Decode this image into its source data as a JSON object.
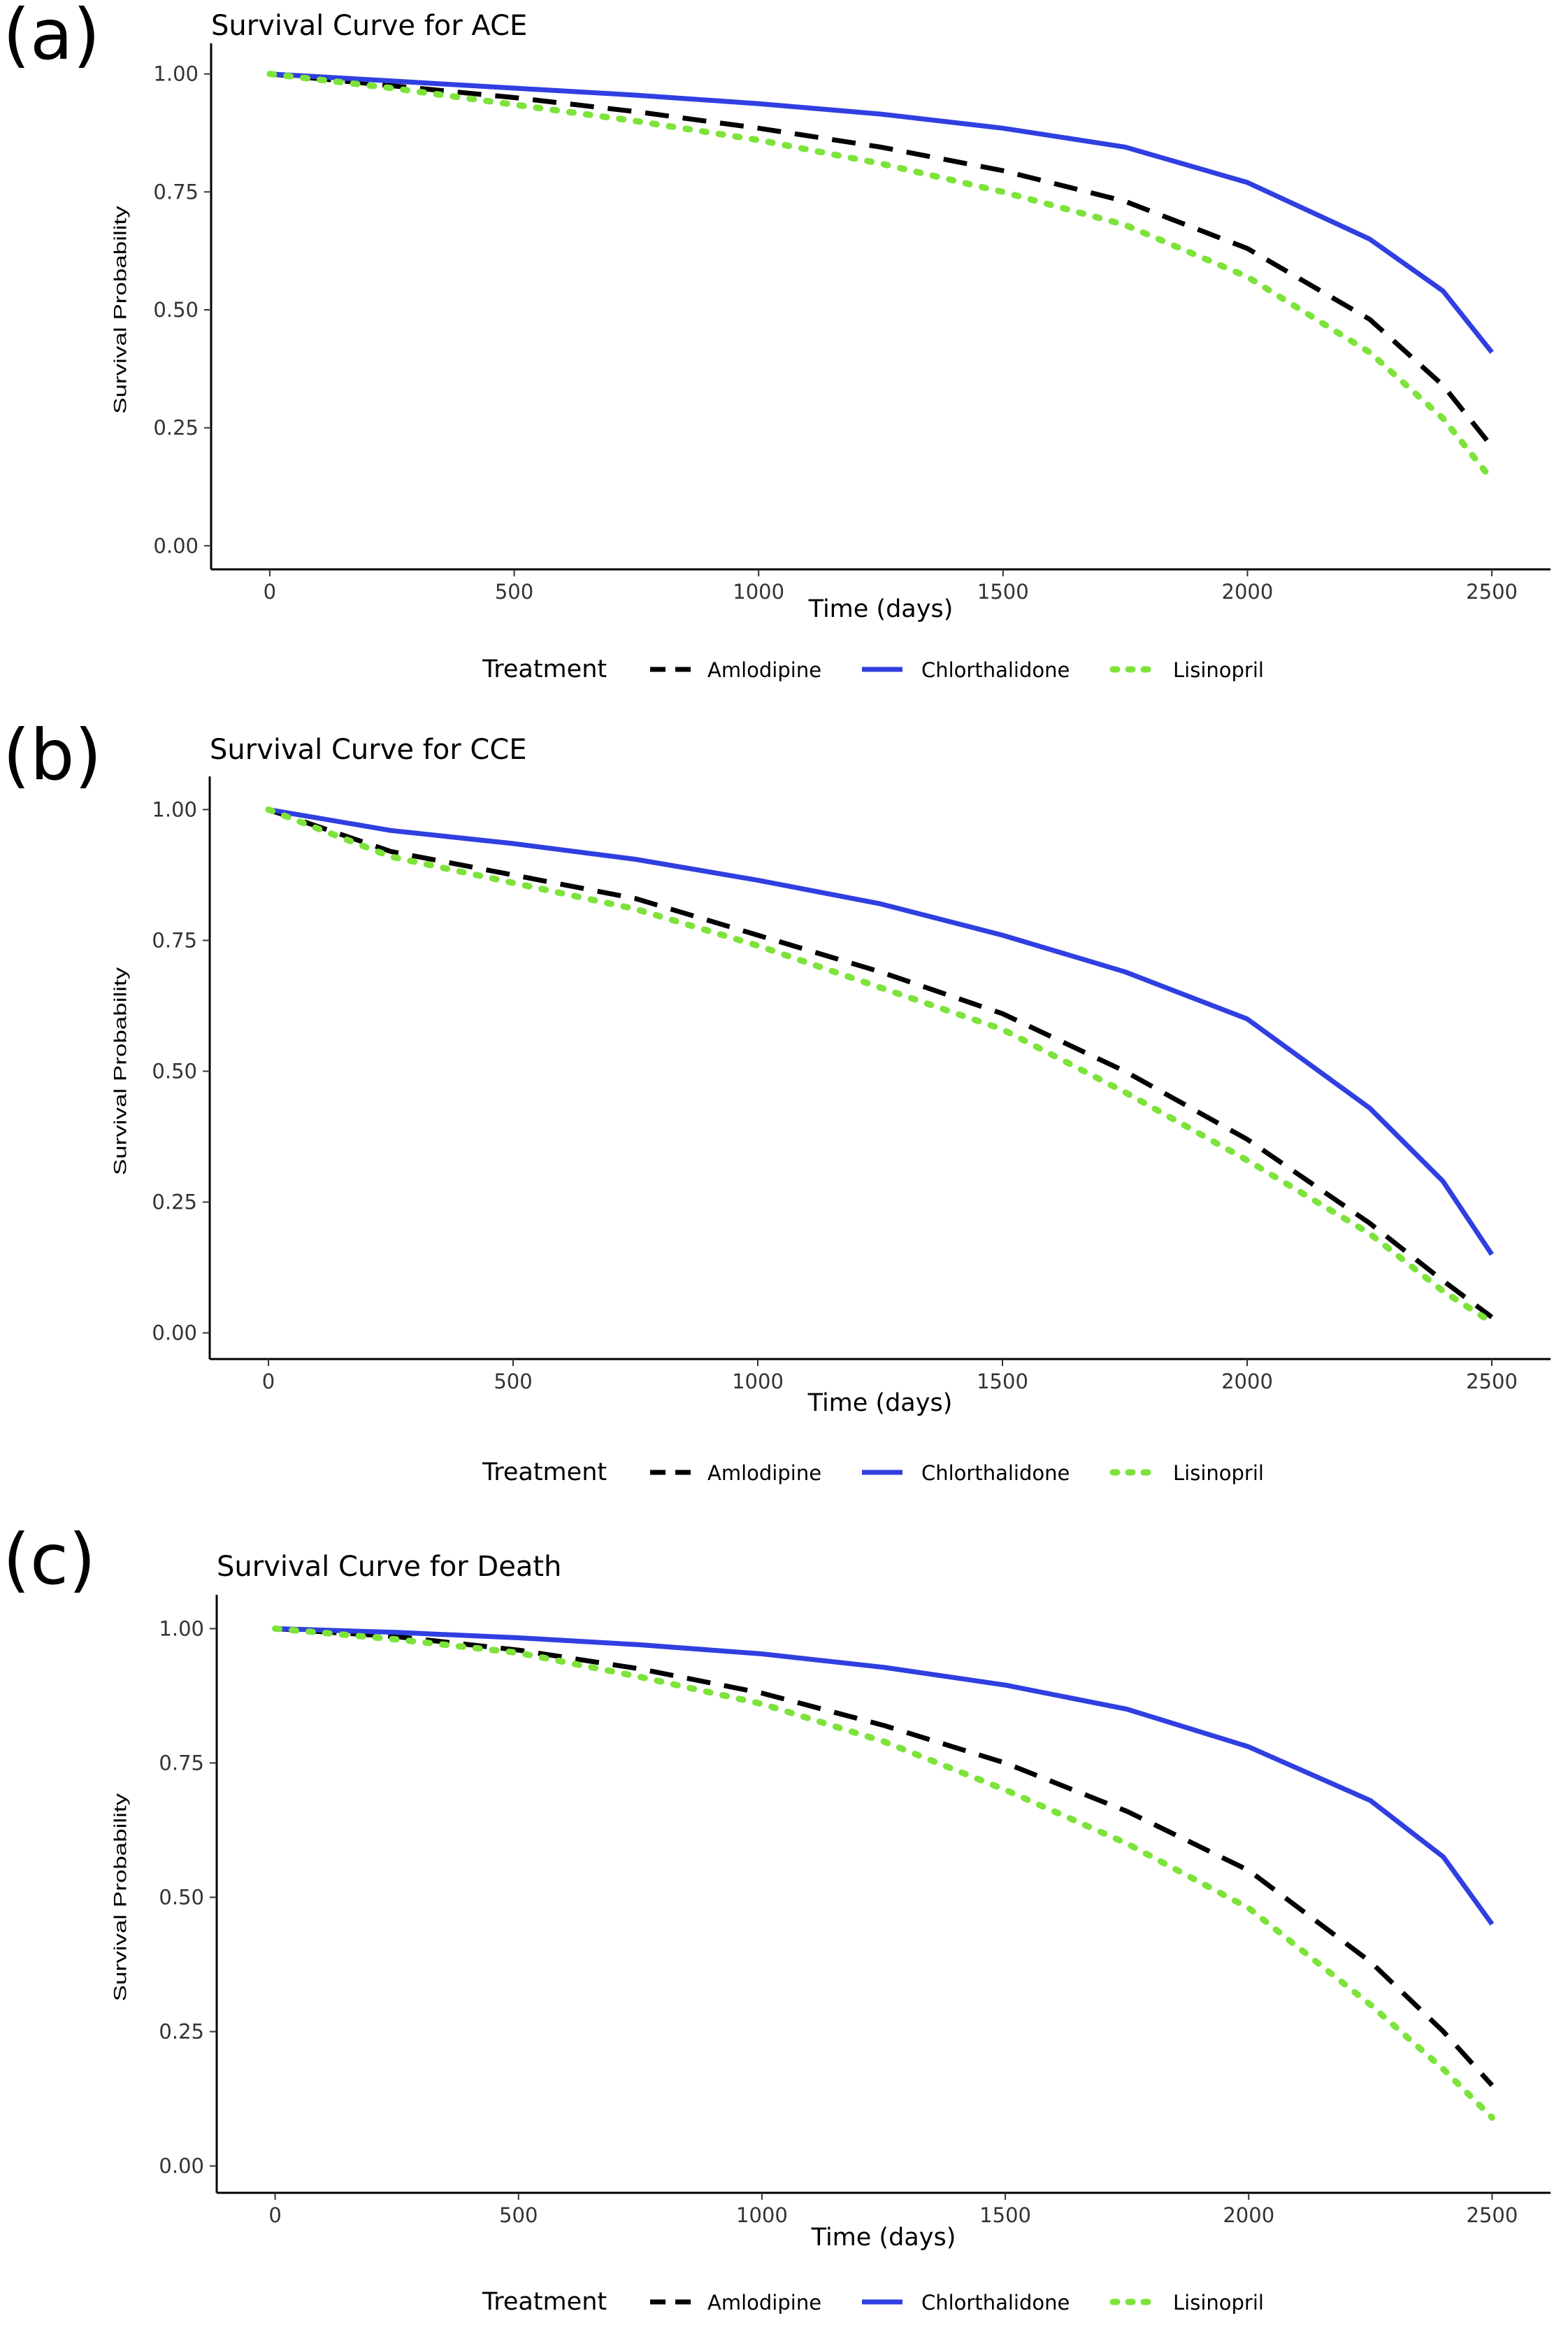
{
  "chart_data": [
    {
      "type": "line",
      "panel_label": "(a)",
      "title": "Survival Curve for ACE",
      "xlabel": "Time (days)",
      "ylabel": "Survival Probability",
      "xlim": [
        -120,
        2620
      ],
      "ylim": [
        -0.05,
        1.05
      ],
      "xticks": [
        "0",
        "500",
        "1000",
        "1500",
        "2000",
        "2500"
      ],
      "yticks": [
        "0.00",
        "0.25",
        "0.50",
        "0.75",
        "1.00"
      ],
      "legend": {
        "title": "Treatment",
        "position": "bottom"
      },
      "series": [
        {
          "name": "Amlodipine",
          "color": "#000000",
          "dash": "dashed",
          "x": [
            0,
            250,
            500,
            750,
            1000,
            1250,
            1500,
            1750,
            2000,
            2250,
            2400,
            2500
          ],
          "y": [
            1.0,
            0.975,
            0.95,
            0.92,
            0.885,
            0.845,
            0.795,
            0.73,
            0.63,
            0.48,
            0.34,
            0.21
          ]
        },
        {
          "name": "Chlorthalidone",
          "color": "#2f3fe0",
          "dash": "solid",
          "x": [
            0,
            250,
            500,
            750,
            1000,
            1250,
            1500,
            1750,
            2000,
            2250,
            2400,
            2500
          ],
          "y": [
            1.0,
            0.985,
            0.97,
            0.955,
            0.937,
            0.915,
            0.885,
            0.845,
            0.77,
            0.65,
            0.54,
            0.41
          ]
        },
        {
          "name": "Lisinopril",
          "color": "#7de33b",
          "dash": "dotted",
          "x": [
            0,
            250,
            500,
            750,
            1000,
            1250,
            1500,
            1750,
            2000,
            2250,
            2400,
            2500
          ],
          "y": [
            1.0,
            0.97,
            0.935,
            0.9,
            0.86,
            0.81,
            0.75,
            0.68,
            0.57,
            0.41,
            0.27,
            0.14
          ]
        }
      ]
    },
    {
      "type": "line",
      "panel_label": "(b)",
      "title": "Survival Curve for CCE",
      "xlabel": "Time (days)",
      "ylabel": "Survival Probability",
      "xlim": [
        -120,
        2620
      ],
      "ylim": [
        -0.05,
        1.05
      ],
      "xticks": [
        "0",
        "500",
        "1000",
        "1500",
        "2000",
        "2500"
      ],
      "yticks": [
        "0.00",
        "0.25",
        "0.50",
        "0.75",
        "1.00"
      ],
      "legend": {
        "title": "Treatment",
        "position": "bottom"
      },
      "series": [
        {
          "name": "Amlodipine",
          "color": "#000000",
          "dash": "dashed",
          "x": [
            0,
            250,
            500,
            750,
            1000,
            1250,
            1500,
            1750,
            2000,
            2250,
            2400,
            2500
          ],
          "y": [
            1.0,
            0.92,
            0.875,
            0.83,
            0.76,
            0.69,
            0.61,
            0.5,
            0.37,
            0.21,
            0.1,
            0.03
          ]
        },
        {
          "name": "Chlorthalidone",
          "color": "#2f3fe0",
          "dash": "solid",
          "x": [
            0,
            250,
            500,
            750,
            1000,
            1250,
            1500,
            1750,
            2000,
            2250,
            2400,
            2500
          ],
          "y": [
            1.0,
            0.96,
            0.935,
            0.905,
            0.865,
            0.82,
            0.76,
            0.69,
            0.6,
            0.43,
            0.29,
            0.15
          ]
        },
        {
          "name": "Lisinopril",
          "color": "#7de33b",
          "dash": "dotted",
          "x": [
            0,
            250,
            500,
            750,
            1000,
            1250,
            1500,
            1750,
            2000,
            2250,
            2400,
            2500
          ],
          "y": [
            1.0,
            0.91,
            0.86,
            0.81,
            0.74,
            0.66,
            0.58,
            0.46,
            0.33,
            0.19,
            0.08,
            0.02
          ]
        }
      ]
    },
    {
      "type": "line",
      "panel_label": "(c)",
      "title": "Survival Curve for Death",
      "xlabel": "Time (days)",
      "ylabel": "Survival Probability",
      "xlim": [
        -120,
        2620
      ],
      "ylim": [
        -0.05,
        1.05
      ],
      "xticks": [
        "0",
        "500",
        "1000",
        "1500",
        "2000",
        "2500"
      ],
      "yticks": [
        "0.00",
        "0.25",
        "0.50",
        "0.75",
        "1.00"
      ],
      "legend": {
        "title": "Treatment",
        "position": "bottom"
      },
      "series": [
        {
          "name": "Amlodipine",
          "color": "#000000",
          "dash": "dashed",
          "x": [
            0,
            250,
            500,
            750,
            1000,
            1250,
            1500,
            1750,
            2000,
            2250,
            2400,
            2500
          ],
          "y": [
            1.0,
            0.985,
            0.96,
            0.925,
            0.88,
            0.82,
            0.75,
            0.66,
            0.55,
            0.38,
            0.25,
            0.15
          ]
        },
        {
          "name": "Chlorthalidone",
          "color": "#2f3fe0",
          "dash": "solid",
          "x": [
            0,
            250,
            500,
            750,
            1000,
            1250,
            1500,
            1750,
            2000,
            2250,
            2400,
            2500
          ],
          "y": [
            1.0,
            0.993,
            0.983,
            0.97,
            0.953,
            0.928,
            0.895,
            0.85,
            0.78,
            0.68,
            0.575,
            0.45
          ]
        },
        {
          "name": "Lisinopril",
          "color": "#7de33b",
          "dash": "dotted",
          "x": [
            0,
            250,
            500,
            750,
            1000,
            1250,
            1500,
            1750,
            2000,
            2250,
            2400,
            2500
          ],
          "y": [
            1.0,
            0.98,
            0.955,
            0.91,
            0.86,
            0.79,
            0.7,
            0.6,
            0.48,
            0.3,
            0.18,
            0.09
          ]
        }
      ]
    }
  ]
}
